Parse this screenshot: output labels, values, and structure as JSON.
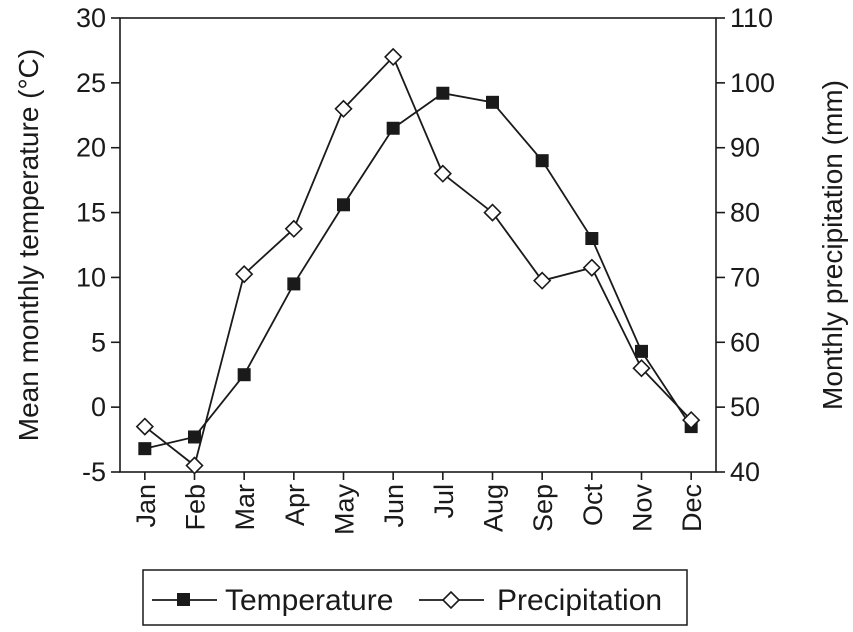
{
  "chart_data": {
    "type": "line",
    "categories": [
      "Jan",
      "Feb",
      "Mar",
      "Apr",
      "May",
      "Jun",
      "Jul",
      "Aug",
      "Sep",
      "Oct",
      "Nov",
      "Dec"
    ],
    "series": [
      {
        "name": "Temperature",
        "axis": "left",
        "marker": "filled-square",
        "values": [
          -3.2,
          -2.3,
          2.5,
          9.5,
          15.6,
          21.5,
          24.2,
          23.5,
          19.0,
          13.0,
          4.3,
          -1.5
        ]
      },
      {
        "name": "Precipitation",
        "axis": "right",
        "marker": "open-diamond",
        "values": [
          47.0,
          41.0,
          70.5,
          77.5,
          96.0,
          104.0,
          86.0,
          80.0,
          69.5,
          71.5,
          56.0,
          48.0
        ]
      }
    ],
    "ylabel": "Mean monthly temperature (°C)",
    "y2label": "Monthly precipitation (mm)",
    "ylim": [
      -5,
      30
    ],
    "y2lim": [
      40,
      110
    ],
    "yticks": [
      "-5",
      "0",
      "5",
      "10",
      "15",
      "20",
      "25",
      "30"
    ],
    "y2ticks": [
      "40",
      "50",
      "60",
      "70",
      "80",
      "90",
      "100",
      "110"
    ],
    "grid": false,
    "legend": "bottom"
  },
  "colors": {
    "ink": "#1a1a1a",
    "background": "#ffffff"
  }
}
